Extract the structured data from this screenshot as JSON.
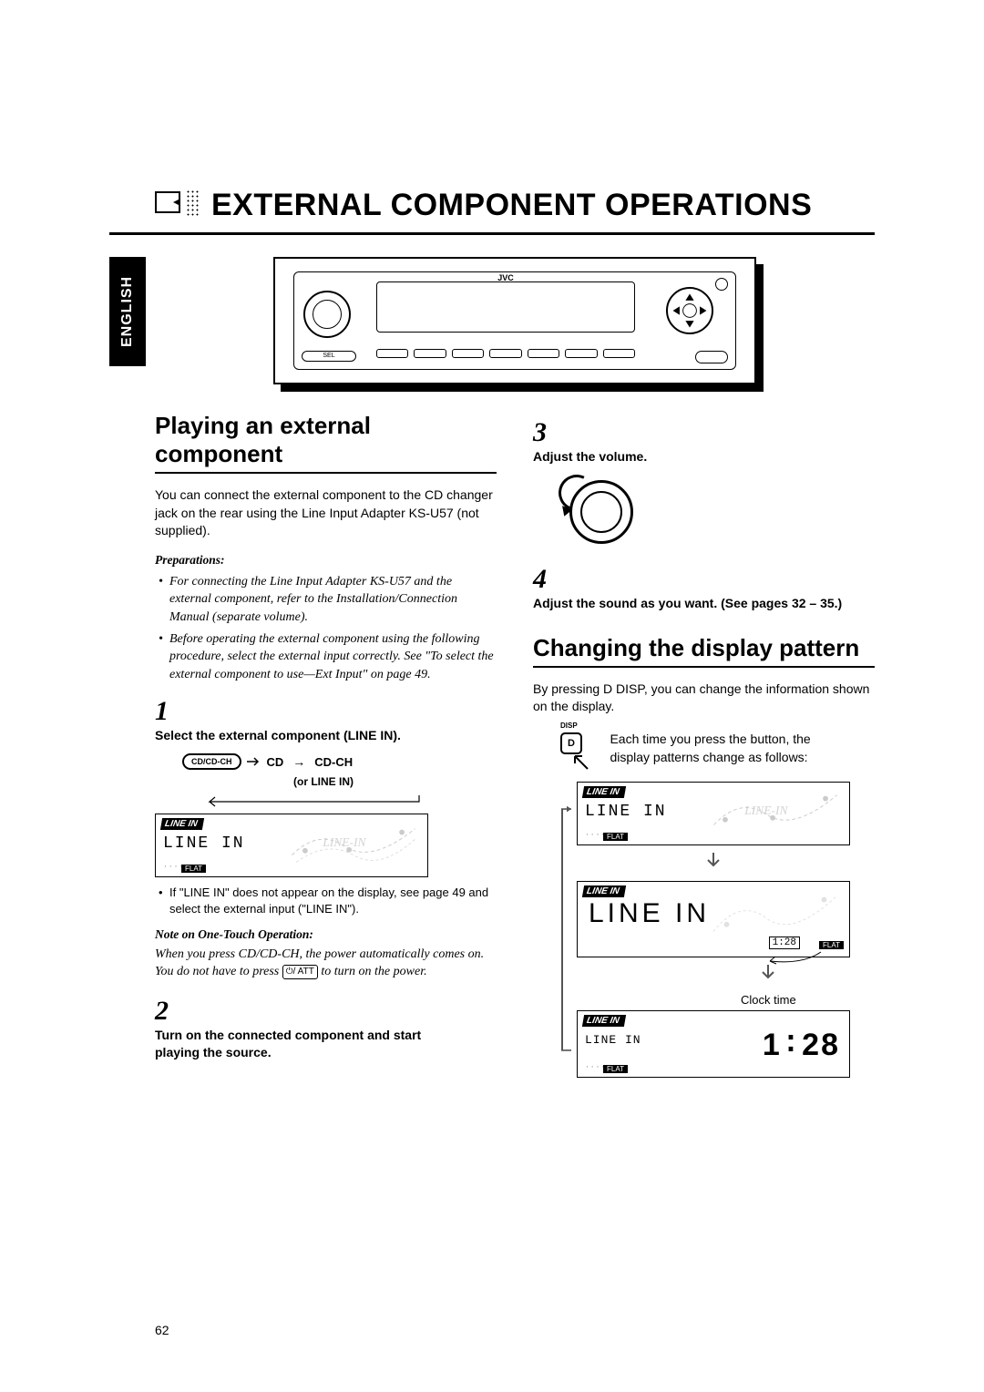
{
  "title": "EXTERNAL COMPONENT OPERATIONS",
  "lang_tab": "ENGLISH",
  "page_number": "62",
  "radio": {
    "brand": "JVC",
    "sel": "SEL"
  },
  "left": {
    "section_heading": "Playing an external component",
    "intro": "You can connect the external component to the CD changer jack on the rear using the Line Input Adapter KS-U57 (not supplied).",
    "prep_heading": "Preparations:",
    "prep1": "For connecting the Line Input Adapter KS-U57 and the external component, refer to the Installation/Connection Manual (separate volume).",
    "prep2": "Before operating the external component using the following procedure, select the external input correctly. See \"To select the external component to use—Ext Input\" on page 49.",
    "step1_text": "Select the external component (LINE IN).",
    "cd_btn": "CD/CD-CH",
    "cd_label": "CD",
    "cdch_label": "CD-CH",
    "or_linein": "(or LINE IN)",
    "lcd1_tag": "LINE IN",
    "lcd1_main": "LINE IN",
    "lcd1_flat": "FLAT",
    "after_lcd": "If \"LINE IN\" does not appear on the display, see page 49 and select the external input (\"LINE IN\").",
    "note_heading": "Note on One-Touch Operation:",
    "note_body_a": "When you press CD/CD-CH, the power automatically comes on. You do not have to press ",
    "note_body_b": " to turn on the power.",
    "att_sym": "⏻/ ATT",
    "step2_text": "Turn on the connected component and start playing the source."
  },
  "right": {
    "step3_text": "Adjust the volume.",
    "step4_text": "Adjust the sound as you want. (See pages 32 – 35.)",
    "section_heading": "Changing the display pattern",
    "intro": "By pressing D DISP, you can change the information shown on the display.",
    "d_label": "D",
    "disp_label": "DISP",
    "press_desc": "Each time you press the button, the display patterns change as follows:",
    "lcd_a_tag": "LINE IN",
    "lcd_a_main": "LINE IN",
    "lcd_a_flat": "FLAT",
    "lcd_b_tag": "LINE IN",
    "lcd_b_main": "LINE IN",
    "lcd_b_time": "1:28",
    "lcd_b_flat": "FLAT",
    "clock_label": "Clock time",
    "lcd_c_tag": "LINE IN",
    "lcd_c_main": "LINE IN",
    "lcd_c_clock": "1:28",
    "lcd_c_flat": "FLAT"
  }
}
